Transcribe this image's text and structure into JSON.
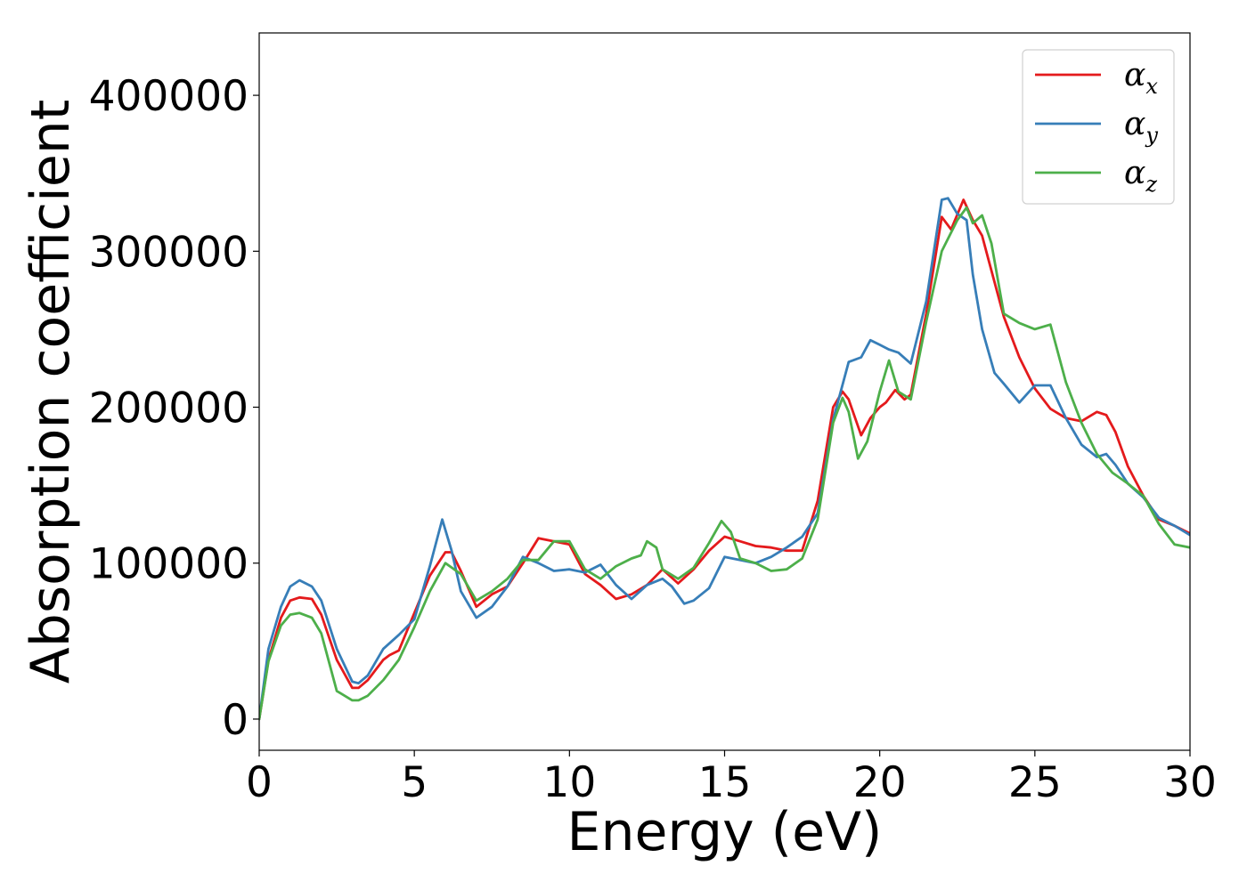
{
  "chart_data": {
    "type": "line",
    "title": "",
    "xlabel": "Energy (eV)",
    "ylabel": "Absorption coefficient",
    "xlim": [
      0,
      30
    ],
    "ylim": [
      -20000,
      440000
    ],
    "xticks": [
      0,
      5,
      10,
      15,
      20,
      25,
      30
    ],
    "yticks": [
      0,
      100000,
      200000,
      300000,
      400000
    ],
    "grid": false,
    "legend_position": "top-right",
    "series": [
      {
        "name": "α",
        "subscript": "x",
        "color": "#e41a1c",
        "x": [
          0,
          0.3,
          0.7,
          1.0,
          1.3,
          1.7,
          2.0,
          2.5,
          3.0,
          3.2,
          3.5,
          4.0,
          4.2,
          4.5,
          5.0,
          5.5,
          6.0,
          6.2,
          6.5,
          7.0,
          7.5,
          8.0,
          8.5,
          9.0,
          9.5,
          10.0,
          10.5,
          11.0,
          11.5,
          12.0,
          12.5,
          13.0,
          13.5,
          14.0,
          14.5,
          15.0,
          15.5,
          16.0,
          16.5,
          17.0,
          17.5,
          18.0,
          18.5,
          18.8,
          19.0,
          19.4,
          19.7,
          20.0,
          20.2,
          20.5,
          20.8,
          21.0,
          21.5,
          22.0,
          22.3,
          22.7,
          23.0,
          23.3,
          23.5,
          24.0,
          24.5,
          25.0,
          25.5,
          26.0,
          26.5,
          27.0,
          27.3,
          27.6,
          28.0,
          28.5,
          29.0,
          29.5,
          30.0
        ],
        "y": [
          0,
          38000,
          65000,
          76000,
          78000,
          77000,
          67000,
          38000,
          20000,
          20000,
          25000,
          38000,
          41000,
          44000,
          68000,
          92000,
          107000,
          107000,
          95000,
          72000,
          80000,
          85000,
          100000,
          116000,
          114000,
          112000,
          93000,
          86000,
          77000,
          80000,
          86000,
          96000,
          87000,
          96000,
          108000,
          117000,
          114000,
          111000,
          110000,
          108000,
          108000,
          140000,
          200000,
          210000,
          205000,
          182000,
          193000,
          200000,
          203000,
          211000,
          205000,
          208000,
          260000,
          322000,
          314000,
          333000,
          320000,
          310000,
          295000,
          258000,
          232000,
          212000,
          199000,
          193000,
          191000,
          197000,
          195000,
          184000,
          162000,
          143000,
          128000,
          124000,
          119000
        ]
      },
      {
        "name": "α",
        "subscript": "y",
        "color": "#377eb8",
        "x": [
          0,
          0.3,
          0.7,
          1.0,
          1.3,
          1.7,
          2.0,
          2.5,
          3.0,
          3.2,
          3.5,
          4.0,
          4.5,
          5.0,
          5.5,
          5.9,
          6.2,
          6.5,
          7.0,
          7.5,
          8.0,
          8.5,
          9.0,
          9.5,
          10.0,
          10.5,
          11.0,
          11.5,
          12.0,
          12.5,
          13.0,
          13.3,
          13.7,
          14.0,
          14.5,
          15.0,
          15.5,
          16.0,
          16.5,
          17.0,
          17.5,
          18.0,
          18.5,
          19.0,
          19.4,
          19.7,
          20.0,
          20.3,
          20.6,
          21.0,
          21.5,
          22.0,
          22.2,
          22.5,
          22.8,
          23.0,
          23.3,
          23.7,
          24.0,
          24.5,
          25.0,
          25.5,
          26.0,
          26.5,
          27.0,
          27.3,
          27.6,
          28.0,
          28.5,
          29.0,
          29.5,
          30.0
        ],
        "y": [
          0,
          45000,
          72000,
          85000,
          89000,
          85000,
          76000,
          45000,
          24000,
          23000,
          28000,
          45000,
          54000,
          64000,
          98000,
          128000,
          108000,
          82000,
          65000,
          72000,
          85000,
          104000,
          100000,
          95000,
          96000,
          94000,
          99000,
          86000,
          77000,
          86000,
          90000,
          85000,
          74000,
          76000,
          84000,
          104000,
          102000,
          100000,
          104000,
          110000,
          117000,
          132000,
          192000,
          229000,
          232000,
          243000,
          240000,
          237000,
          235000,
          228000,
          268000,
          333000,
          334000,
          324000,
          320000,
          285000,
          250000,
          222000,
          215000,
          203000,
          214000,
          214000,
          193000,
          176000,
          168000,
          170000,
          163000,
          151000,
          142000,
          129000,
          124000,
          118000
        ]
      },
      {
        "name": "α",
        "subscript": "z",
        "color": "#4daf4a",
        "x": [
          0,
          0.3,
          0.7,
          1.0,
          1.3,
          1.7,
          2.0,
          2.5,
          3.0,
          3.2,
          3.5,
          4.0,
          4.5,
          5.0,
          5.5,
          6.0,
          6.5,
          7.0,
          7.5,
          8.0,
          8.5,
          9.0,
          9.5,
          10.0,
          10.5,
          11.0,
          11.5,
          12.0,
          12.3,
          12.5,
          12.8,
          13.0,
          13.5,
          14.0,
          14.5,
          14.9,
          15.2,
          15.5,
          16.0,
          16.5,
          17.0,
          17.5,
          18.0,
          18.5,
          18.8,
          19.0,
          19.3,
          19.6,
          20.0,
          20.3,
          20.6,
          21.0,
          21.5,
          22.0,
          22.5,
          22.8,
          23.0,
          23.3,
          23.6,
          24.0,
          24.5,
          25.0,
          25.5,
          26.0,
          26.5,
          27.0,
          27.5,
          28.0,
          28.5,
          29.0,
          29.5,
          30.0
        ],
        "y": [
          0,
          37000,
          60000,
          67000,
          68000,
          65000,
          55000,
          18000,
          12000,
          12000,
          15000,
          25000,
          38000,
          59000,
          82000,
          100000,
          93000,
          76000,
          82000,
          90000,
          102000,
          102000,
          114000,
          114000,
          96000,
          90000,
          98000,
          103000,
          105000,
          114000,
          110000,
          96000,
          90000,
          97000,
          113000,
          127000,
          120000,
          103000,
          100000,
          95000,
          96000,
          103000,
          128000,
          190000,
          206000,
          197000,
          167000,
          178000,
          210000,
          230000,
          210000,
          205000,
          255000,
          300000,
          320000,
          328000,
          318000,
          323000,
          305000,
          260000,
          254000,
          250000,
          253000,
          216000,
          190000,
          170000,
          158000,
          151000,
          143000,
          125000,
          112000,
          110000
        ]
      }
    ]
  }
}
